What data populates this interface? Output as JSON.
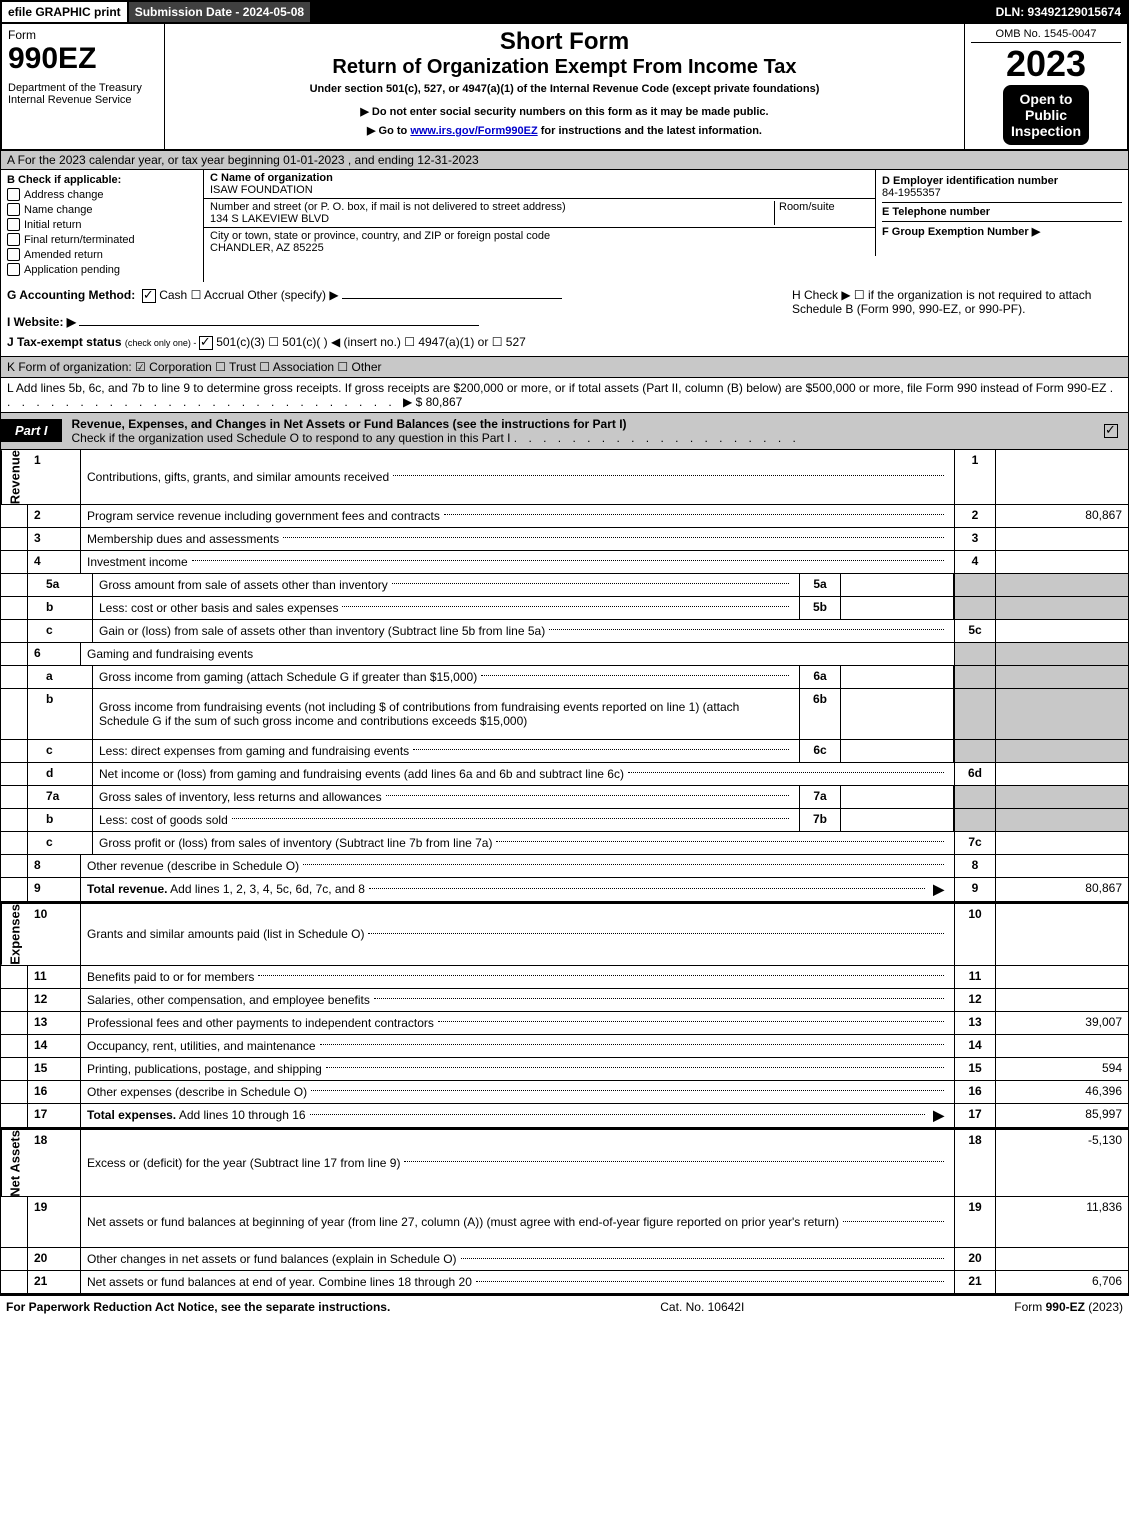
{
  "topbar": {
    "efile": "efile GRAPHIC print",
    "submission": "Submission Date - 2024-05-08",
    "dln": "DLN: 93492129015674"
  },
  "header": {
    "form_word": "Form",
    "form_num": "990EZ",
    "dept1": "Department of the Treasury",
    "dept2": "Internal Revenue Service",
    "short_form": "Short Form",
    "title": "Return of Organization Exempt From Income Tax",
    "sub1": "Under section 501(c), 527, or 4947(a)(1) of the Internal Revenue Code (except private foundations)",
    "sub2": "▶ Do not enter social security numbers on this form as it may be made public.",
    "sub3_pre": "▶ Go to ",
    "sub3_link": "www.irs.gov/Form990EZ",
    "sub3_post": " for instructions and the latest information.",
    "omb": "OMB No. 1545-0047",
    "year": "2023",
    "open1": "Open to",
    "open2": "Public",
    "open3": "Inspection"
  },
  "A": "A  For the 2023 calendar year, or tax year beginning 01-01-2023 , and ending 12-31-2023",
  "B": {
    "hdr": "B  Check if applicable:",
    "items": [
      "Address change",
      "Name change",
      "Initial return",
      "Final return/terminated",
      "Amended return",
      "Application pending"
    ]
  },
  "C": {
    "name_hdr": "C Name of organization",
    "name": "ISAW FOUNDATION",
    "addr_hdr": "Number and street (or P. O. box, if mail is not delivered to street address)",
    "room_hdr": "Room/suite",
    "addr": "134 S LAKEVIEW BLVD",
    "city_hdr": "City or town, state or province, country, and ZIP or foreign postal code",
    "city": "CHANDLER, AZ  85225"
  },
  "D": {
    "ein_hdr": "D Employer identification number",
    "ein": "84-1955357",
    "tel_hdr": "E Telephone number",
    "grp_hdr": "F Group Exemption Number   ▶"
  },
  "GH": {
    "g": "G Accounting Method:",
    "g_opts": "Cash   ☐ Accrual   Other (specify) ▶",
    "h": "H  Check ▶  ☐  if the organization is not required to attach Schedule B (Form 990, 990-EZ, or 990-PF).",
    "i": "I Website: ▶",
    "j_pre": "J Tax-exempt status ",
    "j_small": "(check only one) - ",
    "j_opts": "501(c)(3)  ☐ 501(c)(  ) ◀ (insert no.)  ☐ 4947(a)(1) or  ☐ 527"
  },
  "K": "K Form of organization:   ☑ Corporation  ☐ Trust  ☐ Association  ☐ Other",
  "L": {
    "text": "L Add lines 5b, 6c, and 7b to line 9 to determine gross receipts. If gross receipts are $200,000 or more, or if total assets (Part II, column (B) below) are $500,000 or more, file Form 990 instead of Form 990-EZ",
    "amt": "▶ $ 80,867"
  },
  "part1": {
    "tab": "Part I",
    "title": "Revenue, Expenses, and Changes in Net Assets or Fund Balances (see the instructions for Part I)",
    "sub": "Check if the organization used Schedule O to respond to any question in this Part I"
  },
  "sides": {
    "rev": "Revenue",
    "exp": "Expenses",
    "net": "Net Assets"
  },
  "rows": [
    {
      "n": "1",
      "d": "Contributions, gifts, grants, and similar amounts received",
      "tag": "1",
      "val": ""
    },
    {
      "n": "2",
      "d": "Program service revenue including government fees and contracts",
      "tag": "2",
      "val": "80,867"
    },
    {
      "n": "3",
      "d": "Membership dues and assessments",
      "tag": "3",
      "val": ""
    },
    {
      "n": "4",
      "d": "Investment income",
      "tag": "4",
      "val": ""
    },
    {
      "n": "5a",
      "sub": true,
      "d": "Gross amount from sale of assets other than inventory",
      "mid": "5a",
      "midval": "",
      "tagshade": true,
      "valshade": true
    },
    {
      "n": "b",
      "sub": true,
      "d": "Less: cost or other basis and sales expenses",
      "mid": "5b",
      "midval": "",
      "tagshade": true,
      "valshade": true
    },
    {
      "n": "c",
      "sub": true,
      "d": "Gain or (loss) from sale of assets other than inventory (Subtract line 5b from line 5a)",
      "tag": "5c",
      "val": ""
    },
    {
      "n": "6",
      "d": "Gaming and fundraising events",
      "noline": true,
      "tagshade": true,
      "valshade": true
    },
    {
      "n": "a",
      "sub": true,
      "d": "Gross income from gaming (attach Schedule G if greater than $15,000)",
      "mid": "6a",
      "midval": "",
      "tagshade": true,
      "valshade": true
    },
    {
      "n": "b",
      "sub": true,
      "d": "Gross income from fundraising events (not including $                       of contributions from fundraising events reported on line 1) (attach Schedule G if the sum of such gross income and contributions exceeds $15,000)",
      "mid": "6b",
      "midval": "",
      "tagshade": true,
      "valshade": true,
      "tall": true
    },
    {
      "n": "c",
      "sub": true,
      "d": "Less: direct expenses from gaming and fundraising events",
      "mid": "6c",
      "midval": "",
      "tagshade": true,
      "valshade": true
    },
    {
      "n": "d",
      "sub": true,
      "d": "Net income or (loss) from gaming and fundraising events (add lines 6a and 6b and subtract line 6c)",
      "tag": "6d",
      "val": ""
    },
    {
      "n": "7a",
      "sub": true,
      "d": "Gross sales of inventory, less returns and allowances",
      "mid": "7a",
      "midval": "",
      "tagshade": true,
      "valshade": true
    },
    {
      "n": "b",
      "sub": true,
      "d": "Less: cost of goods sold",
      "mid": "7b",
      "midval": "",
      "tagshade": true,
      "valshade": true
    },
    {
      "n": "c",
      "sub": true,
      "d": "Gross profit or (loss) from sales of inventory (Subtract line 7b from line 7a)",
      "tag": "7c",
      "val": ""
    },
    {
      "n": "8",
      "d": "Other revenue (describe in Schedule O)",
      "tag": "8",
      "val": ""
    },
    {
      "n": "9",
      "d": "Total revenue. Add lines 1, 2, 3, 4, 5c, 6d, 7c, and 8",
      "bold": true,
      "arrow": true,
      "tag": "9",
      "val": "80,867"
    }
  ],
  "exp_rows": [
    {
      "n": "10",
      "d": "Grants and similar amounts paid (list in Schedule O)",
      "tag": "10",
      "val": ""
    },
    {
      "n": "11",
      "d": "Benefits paid to or for members",
      "tag": "11",
      "val": ""
    },
    {
      "n": "12",
      "d": "Salaries, other compensation, and employee benefits",
      "tag": "12",
      "val": ""
    },
    {
      "n": "13",
      "d": "Professional fees and other payments to independent contractors",
      "tag": "13",
      "val": "39,007"
    },
    {
      "n": "14",
      "d": "Occupancy, rent, utilities, and maintenance",
      "tag": "14",
      "val": ""
    },
    {
      "n": "15",
      "d": "Printing, publications, postage, and shipping",
      "tag": "15",
      "val": "594"
    },
    {
      "n": "16",
      "d": "Other expenses (describe in Schedule O)",
      "tag": "16",
      "val": "46,396"
    },
    {
      "n": "17",
      "d": "Total expenses. Add lines 10 through 16",
      "bold": true,
      "arrow": true,
      "tag": "17",
      "val": "85,997"
    }
  ],
  "net_rows": [
    {
      "n": "18",
      "d": "Excess or (deficit) for the year (Subtract line 17 from line 9)",
      "tag": "18",
      "val": "-5,130"
    },
    {
      "n": "19",
      "d": "Net assets or fund balances at beginning of year (from line 27, column (A)) (must agree with end-of-year figure reported on prior year's return)",
      "tag": "19",
      "val": "11,836",
      "tall": true
    },
    {
      "n": "20",
      "d": "Other changes in net assets or fund balances (explain in Schedule O)",
      "tag": "20",
      "val": ""
    },
    {
      "n": "21",
      "d": "Net assets or fund balances at end of year. Combine lines 18 through 20",
      "tag": "21",
      "val": "6,706"
    }
  ],
  "footer": {
    "left": "For Paperwork Reduction Act Notice, see the separate instructions.",
    "mid": "Cat. No. 10642I",
    "right_pre": "Form ",
    "right_b": "990-EZ",
    "right_post": " (2023)"
  }
}
